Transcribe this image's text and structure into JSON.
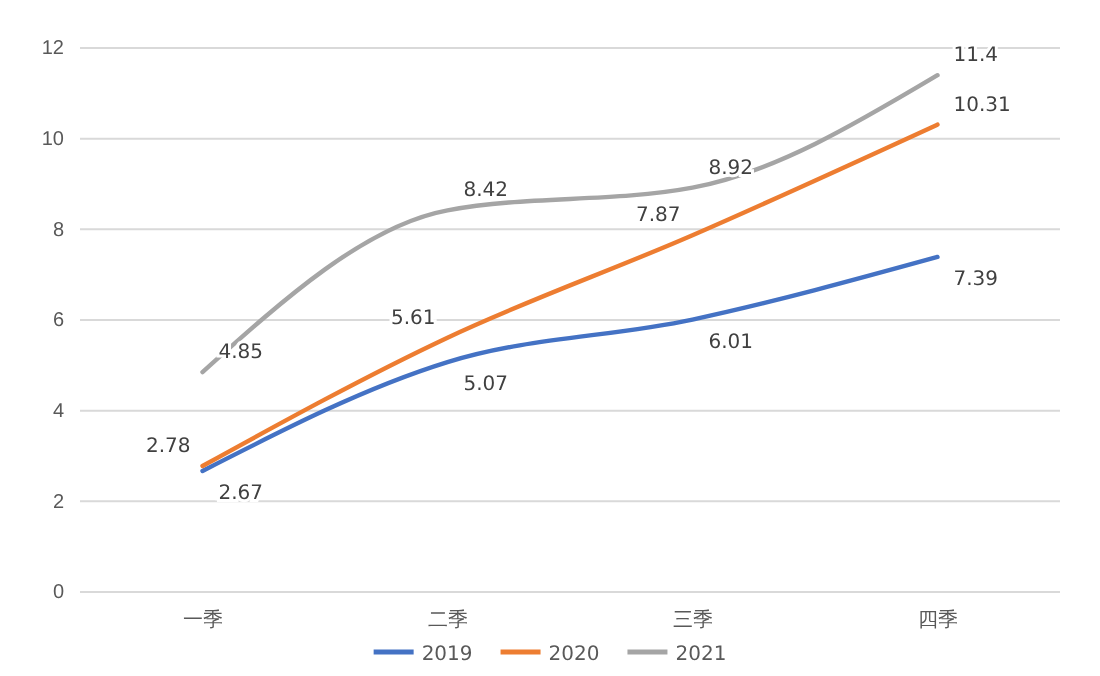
{
  "chart_data": {
    "type": "line",
    "categories": [
      "一季",
      "二季",
      "三季",
      "四季"
    ],
    "series": [
      {
        "name": "2019",
        "color": "#4472c4",
        "values": [
          2.67,
          5.07,
          6.01,
          7.39
        ]
      },
      {
        "name": "2020",
        "color": "#ed7d31",
        "values": [
          2.78,
          5.61,
          7.87,
          10.31
        ]
      },
      {
        "name": "2021",
        "color": "#a5a5a5",
        "values": [
          4.85,
          8.42,
          8.92,
          11.4
        ]
      }
    ],
    "ylim": [
      0,
      12
    ],
    "yticks": [
      0,
      2,
      4,
      6,
      8,
      10,
      12
    ],
    "grid": "y",
    "legend": "bottom",
    "data_labels": true,
    "marker": "none",
    "line_style": "solid"
  }
}
